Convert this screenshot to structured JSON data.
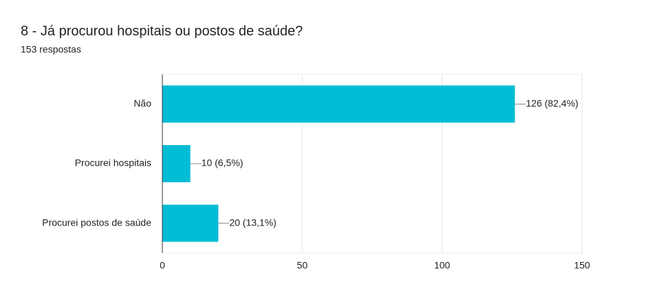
{
  "chart_data": {
    "type": "bar",
    "orientation": "horizontal",
    "title": "8 - Já procurou hospitais ou postos de saúde?",
    "subtitle": "153 respostas",
    "categories": [
      "Não",
      "Procurei hospitais",
      "Procurei postos de saúde"
    ],
    "values": [
      126,
      10,
      20
    ],
    "value_labels": [
      "126 (82,4%)",
      "10 (6,5%)",
      "20 (13,1%)"
    ],
    "color": "#00bcd5",
    "xlim": [
      0,
      150
    ],
    "xticks": [
      0,
      50,
      100,
      150
    ],
    "grid": true
  }
}
